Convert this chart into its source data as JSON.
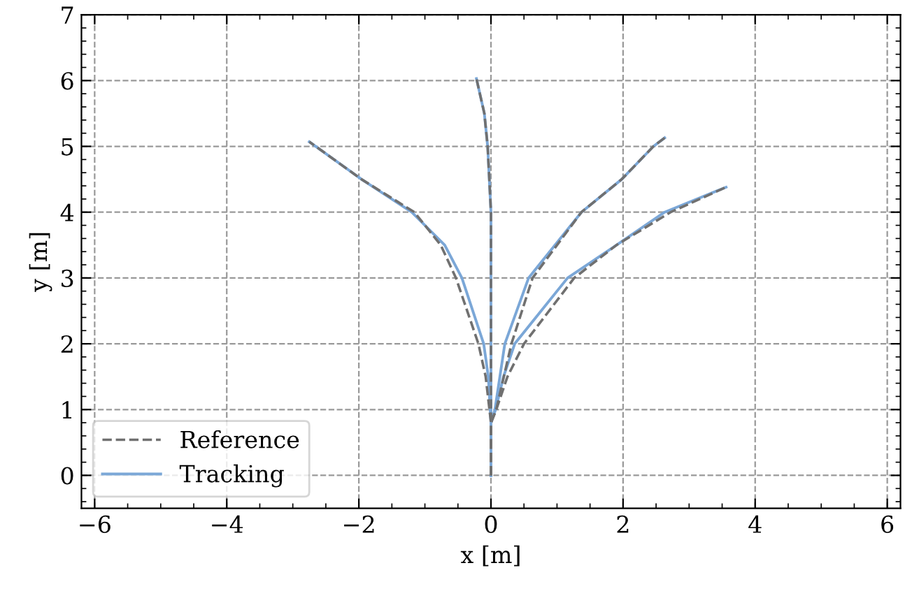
{
  "chart_data": {
    "type": "line",
    "xlabel": "x [m]",
    "ylabel": "y [m]",
    "xlim": [
      -6.2,
      6.2
    ],
    "ylim": [
      -0.5,
      7
    ],
    "xticks": [
      -6,
      -4,
      -2,
      0,
      2,
      4,
      6
    ],
    "yticks": [
      0,
      1,
      2,
      3,
      4,
      5,
      6,
      7
    ],
    "grid": true,
    "legend": "bottom left",
    "series": [
      {
        "name": "Reference",
        "color": "#707070",
        "line_style": "dashed",
        "x": [
          0,
          0,
          -0.08,
          -0.19,
          -0.53,
          -0.76,
          -1.16,
          -1.96,
          -2.75
        ],
        "values": [
          0,
          0.8,
          1.5,
          2,
          3,
          3.5,
          4,
          4.5,
          5.07
        ]
      },
      {
        "color": "#707070",
        "line_style": "dashed",
        "x": [
          0,
          0,
          0,
          -0.05,
          -0.1,
          -0.22
        ],
        "values": [
          0,
          0.8,
          4,
          5,
          5.5,
          6.03
        ]
      },
      {
        "color": "#707070",
        "line_style": "dashed",
        "x": [
          0,
          0,
          0.08,
          0.31,
          0.63,
          1.37,
          1.98,
          2.46,
          2.63
        ],
        "values": [
          0,
          0.8,
          1,
          2,
          3,
          4,
          4.5,
          5,
          5.13
        ]
      },
      {
        "color": "#707070",
        "line_style": "dashed",
        "x": [
          0,
          0,
          0.08,
          0.25,
          0.5,
          1.26,
          1.9,
          2.72,
          3.56
        ],
        "values": [
          0,
          0.8,
          1,
          1.5,
          2,
          3,
          3.5,
          4,
          4.38
        ]
      },
      {
        "name": "Tracking",
        "color": "#7ba7d7",
        "line_style": "solid",
        "x": [
          0,
          0,
          -0.04,
          -0.11,
          -0.44,
          -0.7,
          -1.2,
          -1.96,
          -2.75
        ],
        "values": [
          0,
          0.8,
          1.5,
          2,
          3,
          3.5,
          4,
          4.5,
          5.07
        ]
      },
      {
        "color": "#7ba7d7",
        "line_style": "solid",
        "x": [
          0,
          0,
          0,
          -0.05,
          -0.1,
          -0.22
        ],
        "values": [
          0,
          0.8,
          4,
          5,
          5.5,
          6.03
        ]
      },
      {
        "color": "#7ba7d7",
        "line_style": "solid",
        "x": [
          0,
          0,
          0.06,
          0.21,
          0.57,
          1.37,
          1.98,
          2.46,
          2.63
        ],
        "values": [
          0,
          0.8,
          1,
          2,
          3,
          4,
          4.5,
          5,
          5.13
        ]
      },
      {
        "color": "#7ba7d7",
        "line_style": "solid",
        "x": [
          0,
          0,
          0.07,
          0.19,
          0.36,
          1.16,
          1.9,
          2.63,
          3.56
        ],
        "values": [
          0,
          0.8,
          1,
          1.5,
          2,
          3,
          3.5,
          4,
          4.38
        ]
      }
    ]
  }
}
